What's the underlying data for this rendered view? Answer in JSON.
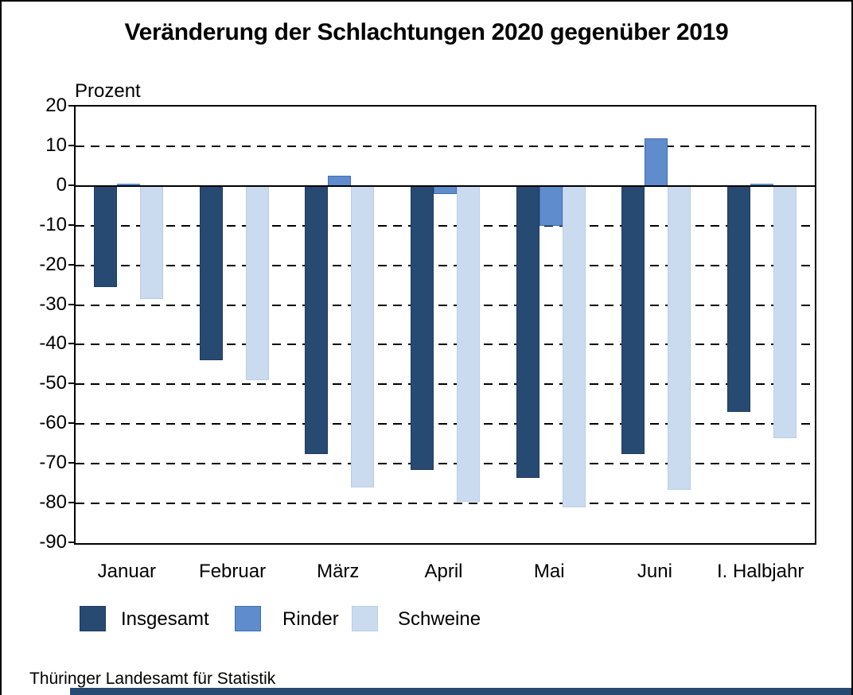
{
  "title": "Veränderung der Schlachtungen 2020 gegenüber 2019",
  "unit_label": "Prozent",
  "source": "Thüringer Landesamt für Statistik",
  "colors": {
    "background": "#FFFFFF",
    "frame": "#000000",
    "grid": "#000000",
    "footer_bar": "#274A72"
  },
  "chart_data": {
    "type": "bar",
    "title": "Veränderung der Schlachtungen 2020 gegenüber 2019",
    "ylabel": "Prozent",
    "xlabel": "",
    "categories": [
      "Januar",
      "Februar",
      "März",
      "April",
      "Mai",
      "Juni",
      "I. Halbjahr"
    ],
    "series": [
      {
        "name": "Insgesamt",
        "color": "#274A72",
        "border": "#1F3B5D",
        "values": [
          -25.5,
          -44,
          -67.5,
          -71.5,
          -73.5,
          -67.5,
          -57
        ]
      },
      {
        "name": "Rinder",
        "color": "#5E8CCC",
        "border": "#3F6EB5",
        "values": [
          0.5,
          0,
          2.5,
          -2,
          -10,
          12,
          0.5
        ]
      },
      {
        "name": "Schweine",
        "color": "#CBDBEF",
        "border": "#B9CDE8",
        "values": [
          -28.5,
          -49,
          -76,
          -79.5,
          -81,
          -76.5,
          -63.5
        ]
      }
    ],
    "ylim": [
      -90,
      20
    ],
    "yticks": [
      20,
      10,
      0,
      -10,
      -20,
      -30,
      -40,
      -50,
      -60,
      -70,
      -80,
      -90
    ],
    "grid": "horizontal-dashed",
    "zero_line": "solid",
    "legend_position": "bottom"
  }
}
